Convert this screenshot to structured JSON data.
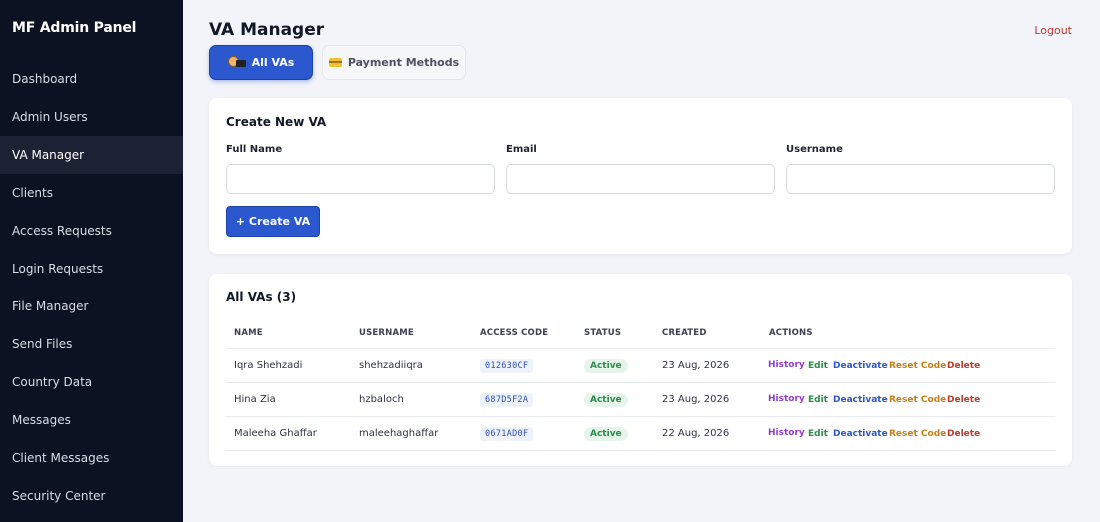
{
  "sidebar": {
    "brand": "MF Admin Panel",
    "items": [
      {
        "label": "Dashboard"
      },
      {
        "label": "Admin Users"
      },
      {
        "label": "VA Manager"
      },
      {
        "label": "Clients"
      },
      {
        "label": "Access Requests"
      },
      {
        "label": "Login Requests"
      },
      {
        "label": "File Manager"
      },
      {
        "label": "Send Files"
      },
      {
        "label": "Country Data"
      },
      {
        "label": "Messages"
      },
      {
        "label": "Client Messages"
      },
      {
        "label": "Security Center"
      }
    ],
    "active": "VA Manager"
  },
  "header": {
    "title": "VA Manager",
    "logout": "Logout"
  },
  "tabs": [
    {
      "label": "All VAs",
      "icon": "person-laptop-emoji"
    },
    {
      "label": "Payment Methods",
      "icon": "credit-card-emoji"
    }
  ],
  "create": {
    "title": "Create New VA",
    "fields": [
      {
        "label": "Full Name",
        "value": ""
      },
      {
        "label": "Email",
        "value": ""
      },
      {
        "label": "Username",
        "value": ""
      }
    ],
    "button": "+ Create VA"
  },
  "list": {
    "title": "All VAs (3)",
    "columns": [
      "NAME",
      "USERNAME",
      "ACCESS CODE",
      "STATUS",
      "CREATED",
      "ACTIONS"
    ],
    "rows": [
      {
        "name": "Iqra Shehzadi",
        "username": "shehzadiiqra",
        "code": "012630CF",
        "status": "Active",
        "created": "23 Aug, 2026"
      },
      {
        "name": "Hina Zia",
        "username": "hzbaloch",
        "code": "687D5F2A",
        "status": "Active",
        "created": "23 Aug, 2026"
      },
      {
        "name": "Maleeha Ghaffar",
        "username": "maleehaghaffar",
        "code": "0671AD0F",
        "status": "Active",
        "created": "22 Aug, 2026"
      }
    ],
    "actions": [
      "History",
      "Edit",
      "Deactivate",
      "Reset Code",
      "Delete"
    ]
  },
  "colors": {
    "sidebar_bg": "#0d1222",
    "accent": "#2b58cf",
    "history": "#8e3fd0",
    "edit": "#2e8b4a",
    "reset": "#c67f17",
    "delete": "#c0392b"
  }
}
